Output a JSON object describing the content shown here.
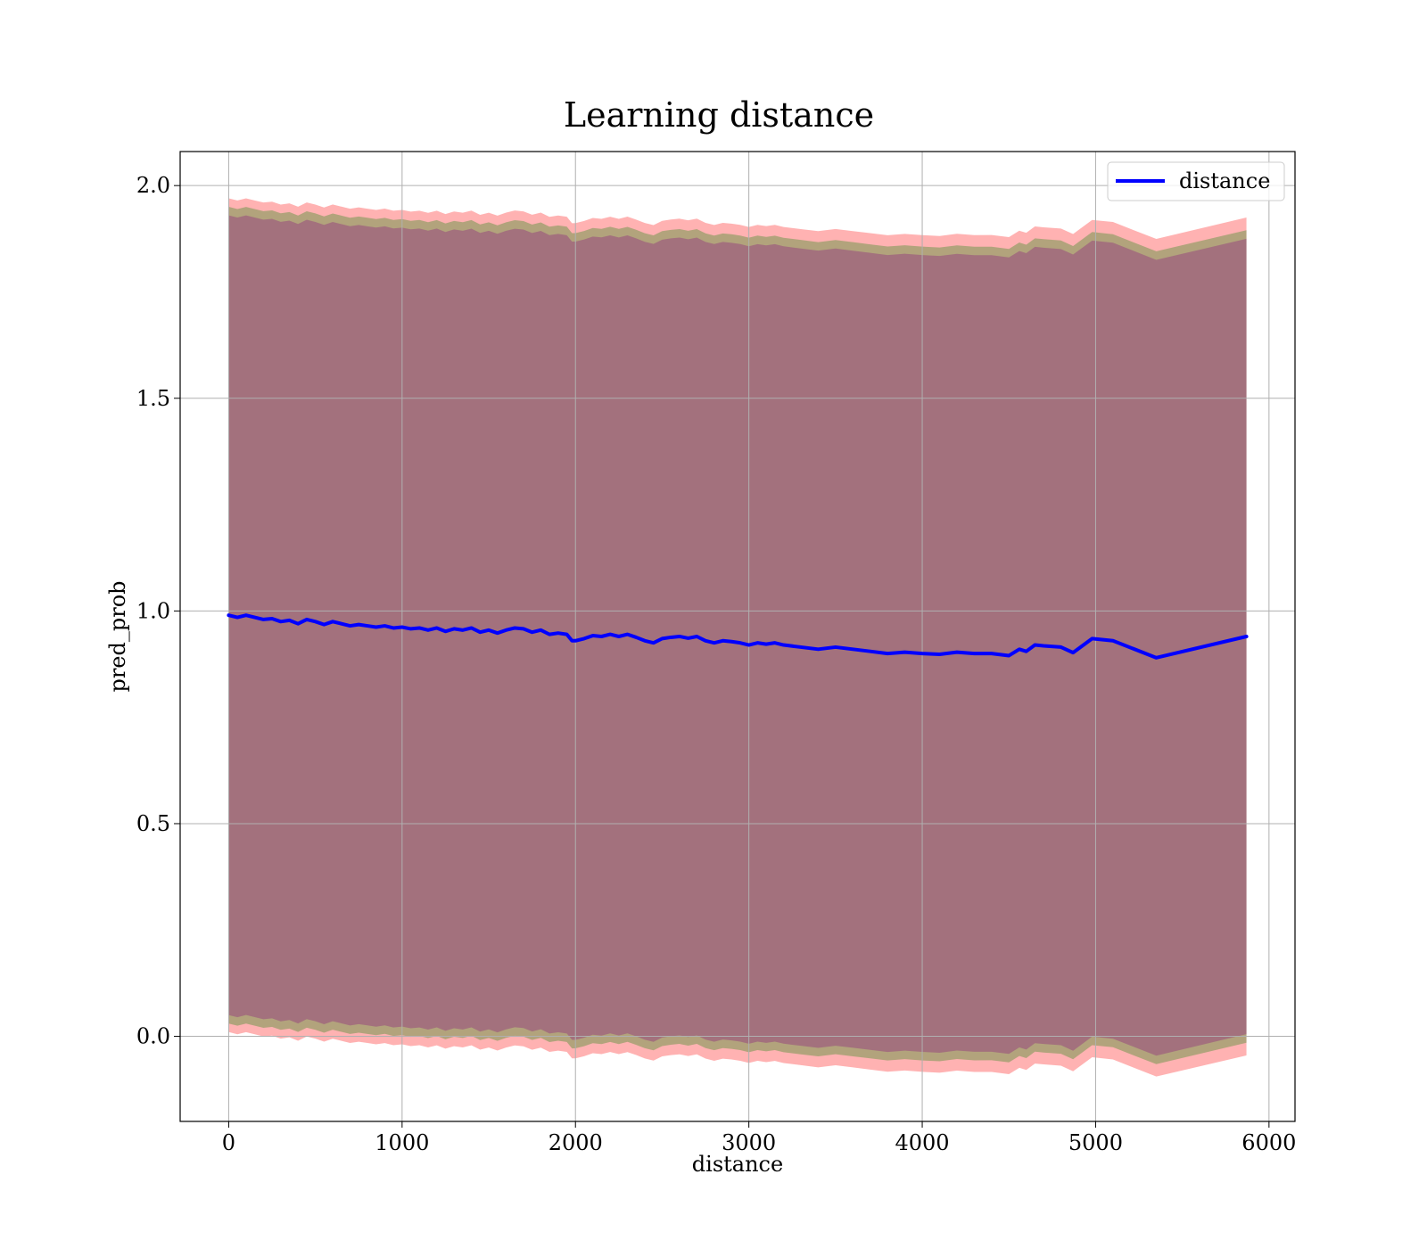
{
  "chart_data": {
    "type": "line",
    "title": "Learning distance",
    "xlabel": "distance",
    "ylabel": "pred_prob",
    "xlim": [
      -280,
      6150
    ],
    "ylim": [
      -0.2,
      2.08
    ],
    "xticks": [
      0,
      1000,
      2000,
      3000,
      4000,
      5000,
      6000
    ],
    "xtick_labels": [
      "0",
      "1000",
      "2000",
      "3000",
      "4000",
      "5000",
      "6000"
    ],
    "yticks": [
      0.0,
      0.5,
      1.0,
      1.5,
      2.0
    ],
    "ytick_labels": [
      "0.0",
      "0.5",
      "1.0",
      "1.5",
      "2.0"
    ],
    "grid": true,
    "legend": {
      "position": "top-right",
      "entries": [
        "distance"
      ]
    },
    "colors": {
      "line": "#0000ff",
      "outer_band": "#ff0000",
      "mid_band": "#008000",
      "inner_band": "#800080",
      "grid": "#b0b0b0"
    },
    "series": [
      {
        "name": "distance",
        "x": [
          0,
          50,
          100,
          150,
          200,
          250,
          300,
          350,
          400,
          450,
          500,
          550,
          600,
          650,
          700,
          750,
          800,
          850,
          900,
          950,
          1000,
          1050,
          1100,
          1150,
          1200,
          1250,
          1300,
          1350,
          1400,
          1450,
          1500,
          1550,
          1600,
          1650,
          1700,
          1750,
          1800,
          1850,
          1900,
          1950,
          1980,
          2000,
          2050,
          2100,
          2150,
          2200,
          2250,
          2300,
          2350,
          2400,
          2450,
          2500,
          2550,
          2600,
          2650,
          2700,
          2750,
          2800,
          2850,
          2900,
          2950,
          3000,
          3050,
          3100,
          3150,
          3200,
          3300,
          3400,
          3500,
          3600,
          3700,
          3800,
          3900,
          4000,
          4100,
          4200,
          4300,
          4400,
          4500,
          4560,
          4600,
          4650,
          4700,
          4800,
          4870,
          4980,
          5100,
          5350,
          5870
        ],
        "y": [
          0.99,
          0.985,
          0.99,
          0.985,
          0.98,
          0.982,
          0.975,
          0.978,
          0.97,
          0.98,
          0.975,
          0.968,
          0.975,
          0.97,
          0.965,
          0.968,
          0.965,
          0.962,
          0.965,
          0.96,
          0.962,
          0.958,
          0.96,
          0.955,
          0.96,
          0.952,
          0.958,
          0.955,
          0.96,
          0.95,
          0.955,
          0.948,
          0.955,
          0.96,
          0.958,
          0.95,
          0.955,
          0.945,
          0.948,
          0.945,
          0.93,
          0.93,
          0.935,
          0.942,
          0.94,
          0.945,
          0.94,
          0.945,
          0.938,
          0.93,
          0.925,
          0.935,
          0.938,
          0.94,
          0.936,
          0.94,
          0.93,
          0.925,
          0.93,
          0.928,
          0.925,
          0.92,
          0.925,
          0.922,
          0.925,
          0.92,
          0.915,
          0.91,
          0.915,
          0.91,
          0.905,
          0.9,
          0.903,
          0.9,
          0.898,
          0.903,
          0.9,
          0.9,
          0.895,
          0.91,
          0.905,
          0.92,
          0.918,
          0.915,
          0.902,
          0.935,
          0.93,
          0.89,
          0.94
        ]
      }
    ],
    "bands": [
      {
        "level": "outer",
        "half_width_start": 0.98,
        "half_width_end": 0.985
      },
      {
        "level": "mid",
        "half_width_start": 0.96,
        "half_width_end": 0.955
      },
      {
        "level": "inner",
        "half_width_start": 0.94,
        "half_width_end": 0.935
      }
    ]
  }
}
